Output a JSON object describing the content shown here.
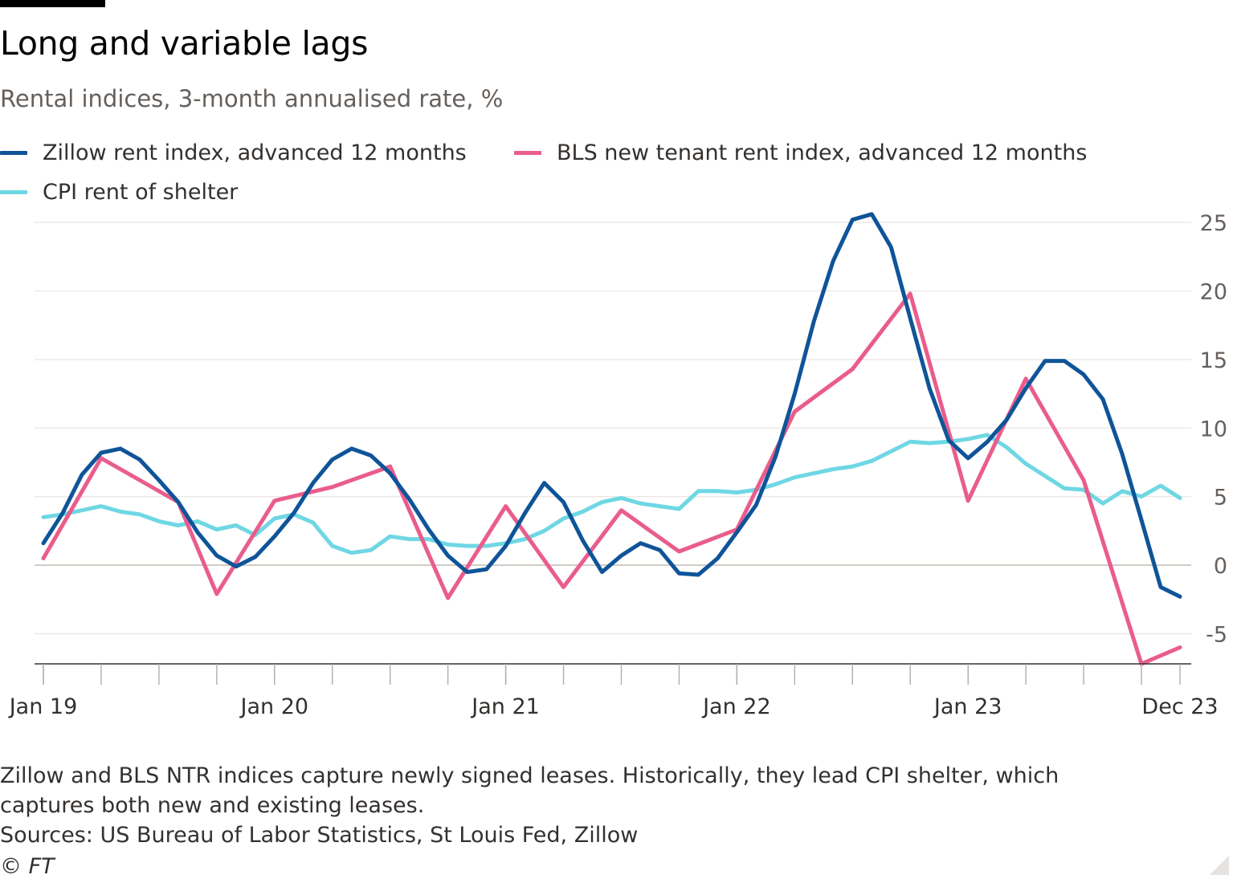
{
  "header": {
    "title": "Long and variable lags",
    "subtitle": "Rental indices, 3-month annualised rate, %"
  },
  "legend": [
    {
      "label": "Zillow rent index, advanced 12 months",
      "color": "#0f5499"
    },
    {
      "label": "BLS new tenant rent index, advanced 12 months",
      "color": "#e95d8c"
    },
    {
      "label": "CPI rent of shelter",
      "color": "#6fd7e4"
    }
  ],
  "footer": {
    "note": "Zillow and BLS NTR indices capture newly signed leases. Historically, they lead CPI shelter, which captures both new and existing leases.",
    "sources": "Sources: US Bureau of Labor Statistics, St Louis Fed, Zillow",
    "copyright": "© FT"
  },
  "chart_data": {
    "type": "line",
    "title": "Long and variable lags",
    "subtitle": "Rental indices, 3-month annualised rate, %",
    "xlabel": "",
    "ylabel": "",
    "x_domain": [
      0,
      59
    ],
    "ylim": [
      -7.2,
      26
    ],
    "y_ticks": [
      -5,
      0,
      5,
      10,
      15,
      20,
      25
    ],
    "y_tick_labels": [
      "-5",
      "0",
      "5",
      "10",
      "15",
      "20",
      "25"
    ],
    "y_axis_side": "right",
    "x_tick_labels": [
      {
        "label": "Jan 19",
        "month": 0
      },
      {
        "label": "Jan 20",
        "month": 12
      },
      {
        "label": "Jan 21",
        "month": 24
      },
      {
        "label": "Jan 22",
        "month": 36
      },
      {
        "label": "Jan 23",
        "month": 48
      },
      {
        "label": "Dec 23",
        "month": 59
      }
    ],
    "x_minor_tick_step_months": 3,
    "series": [
      {
        "name": "Zillow rent index, advanced 12 months",
        "color": "#0f5499",
        "x": [
          0,
          1,
          2,
          3,
          4,
          5,
          6,
          7,
          8,
          9,
          10,
          11,
          12,
          13,
          14,
          15,
          16,
          17,
          18,
          19,
          20,
          21,
          22,
          23,
          24,
          25,
          26,
          27,
          28,
          29,
          30,
          31,
          32,
          33,
          34,
          35,
          36,
          37,
          38,
          39,
          40,
          41,
          42,
          43,
          44,
          45,
          46,
          47,
          48,
          49,
          50,
          51,
          52,
          53,
          54,
          55,
          56,
          57,
          58,
          59
        ],
        "values": [
          1.6,
          3.8,
          6.6,
          8.2,
          8.5,
          7.7,
          6.2,
          4.6,
          2.4,
          0.7,
          -0.1,
          0.6,
          2.1,
          3.8,
          6.0,
          7.7,
          8.5,
          8.0,
          6.7,
          4.8,
          2.6,
          0.7,
          -0.5,
          -0.3,
          1.4,
          3.8,
          6.0,
          4.6,
          1.8,
          -0.5,
          0.7,
          1.6,
          1.1,
          -0.6,
          -0.7,
          0.5,
          2.4,
          4.4,
          7.9,
          12.5,
          17.8,
          22.2,
          25.2,
          25.6,
          23.2,
          18.0,
          12.9,
          9.1,
          7.8,
          9.0,
          10.6,
          12.9,
          14.9,
          14.9,
          13.9,
          12.1,
          8.1,
          3.3,
          -1.6,
          -2.3
        ]
      },
      {
        "name": "BLS new tenant rent index, advanced 12 months",
        "color": "#e95d8c",
        "x": [
          0,
          3,
          7,
          9,
          12,
          15,
          18,
          21,
          24,
          27,
          30,
          33,
          36,
          39,
          42,
          45,
          48,
          51,
          54,
          57,
          59
        ],
        "values": [
          0.5,
          7.8,
          4.6,
          -2.1,
          4.7,
          5.7,
          7.2,
          -2.4,
          4.3,
          -1.6,
          4.0,
          1.0,
          2.6,
          11.2,
          14.3,
          19.8,
          4.7,
          13.6,
          6.2,
          -7.2,
          -6.0
        ]
      },
      {
        "name": "CPI rent of shelter",
        "color": "#6fd7e4",
        "x": [
          0,
          1,
          2,
          3,
          4,
          5,
          6,
          7,
          8,
          9,
          10,
          11,
          12,
          13,
          14,
          15,
          16,
          17,
          18,
          19,
          20,
          21,
          22,
          23,
          24,
          25,
          26,
          27,
          28,
          29,
          30,
          31,
          32,
          33,
          34,
          35,
          36,
          37,
          38,
          39,
          40,
          41,
          42,
          43,
          44,
          45,
          46,
          47,
          48,
          49,
          50,
          51,
          52,
          53,
          54,
          55,
          56,
          57,
          58,
          59
        ],
        "values": [
          3.5,
          3.7,
          4.0,
          4.3,
          3.9,
          3.7,
          3.2,
          2.9,
          3.2,
          2.6,
          2.9,
          2.2,
          3.4,
          3.7,
          3.1,
          1.4,
          0.9,
          1.1,
          2.1,
          1.9,
          1.9,
          1.5,
          1.4,
          1.4,
          1.6,
          1.9,
          2.5,
          3.4,
          3.9,
          4.6,
          4.9,
          4.5,
          4.3,
          4.1,
          5.4,
          5.4,
          5.3,
          5.5,
          5.9,
          6.4,
          6.7,
          7.0,
          7.2,
          7.6,
          8.3,
          9.0,
          8.9,
          9.0,
          9.2,
          9.5,
          8.6,
          7.4,
          6.5,
          5.6,
          5.5,
          4.5,
          5.4,
          5.0,
          5.8,
          4.9
        ]
      }
    ]
  }
}
